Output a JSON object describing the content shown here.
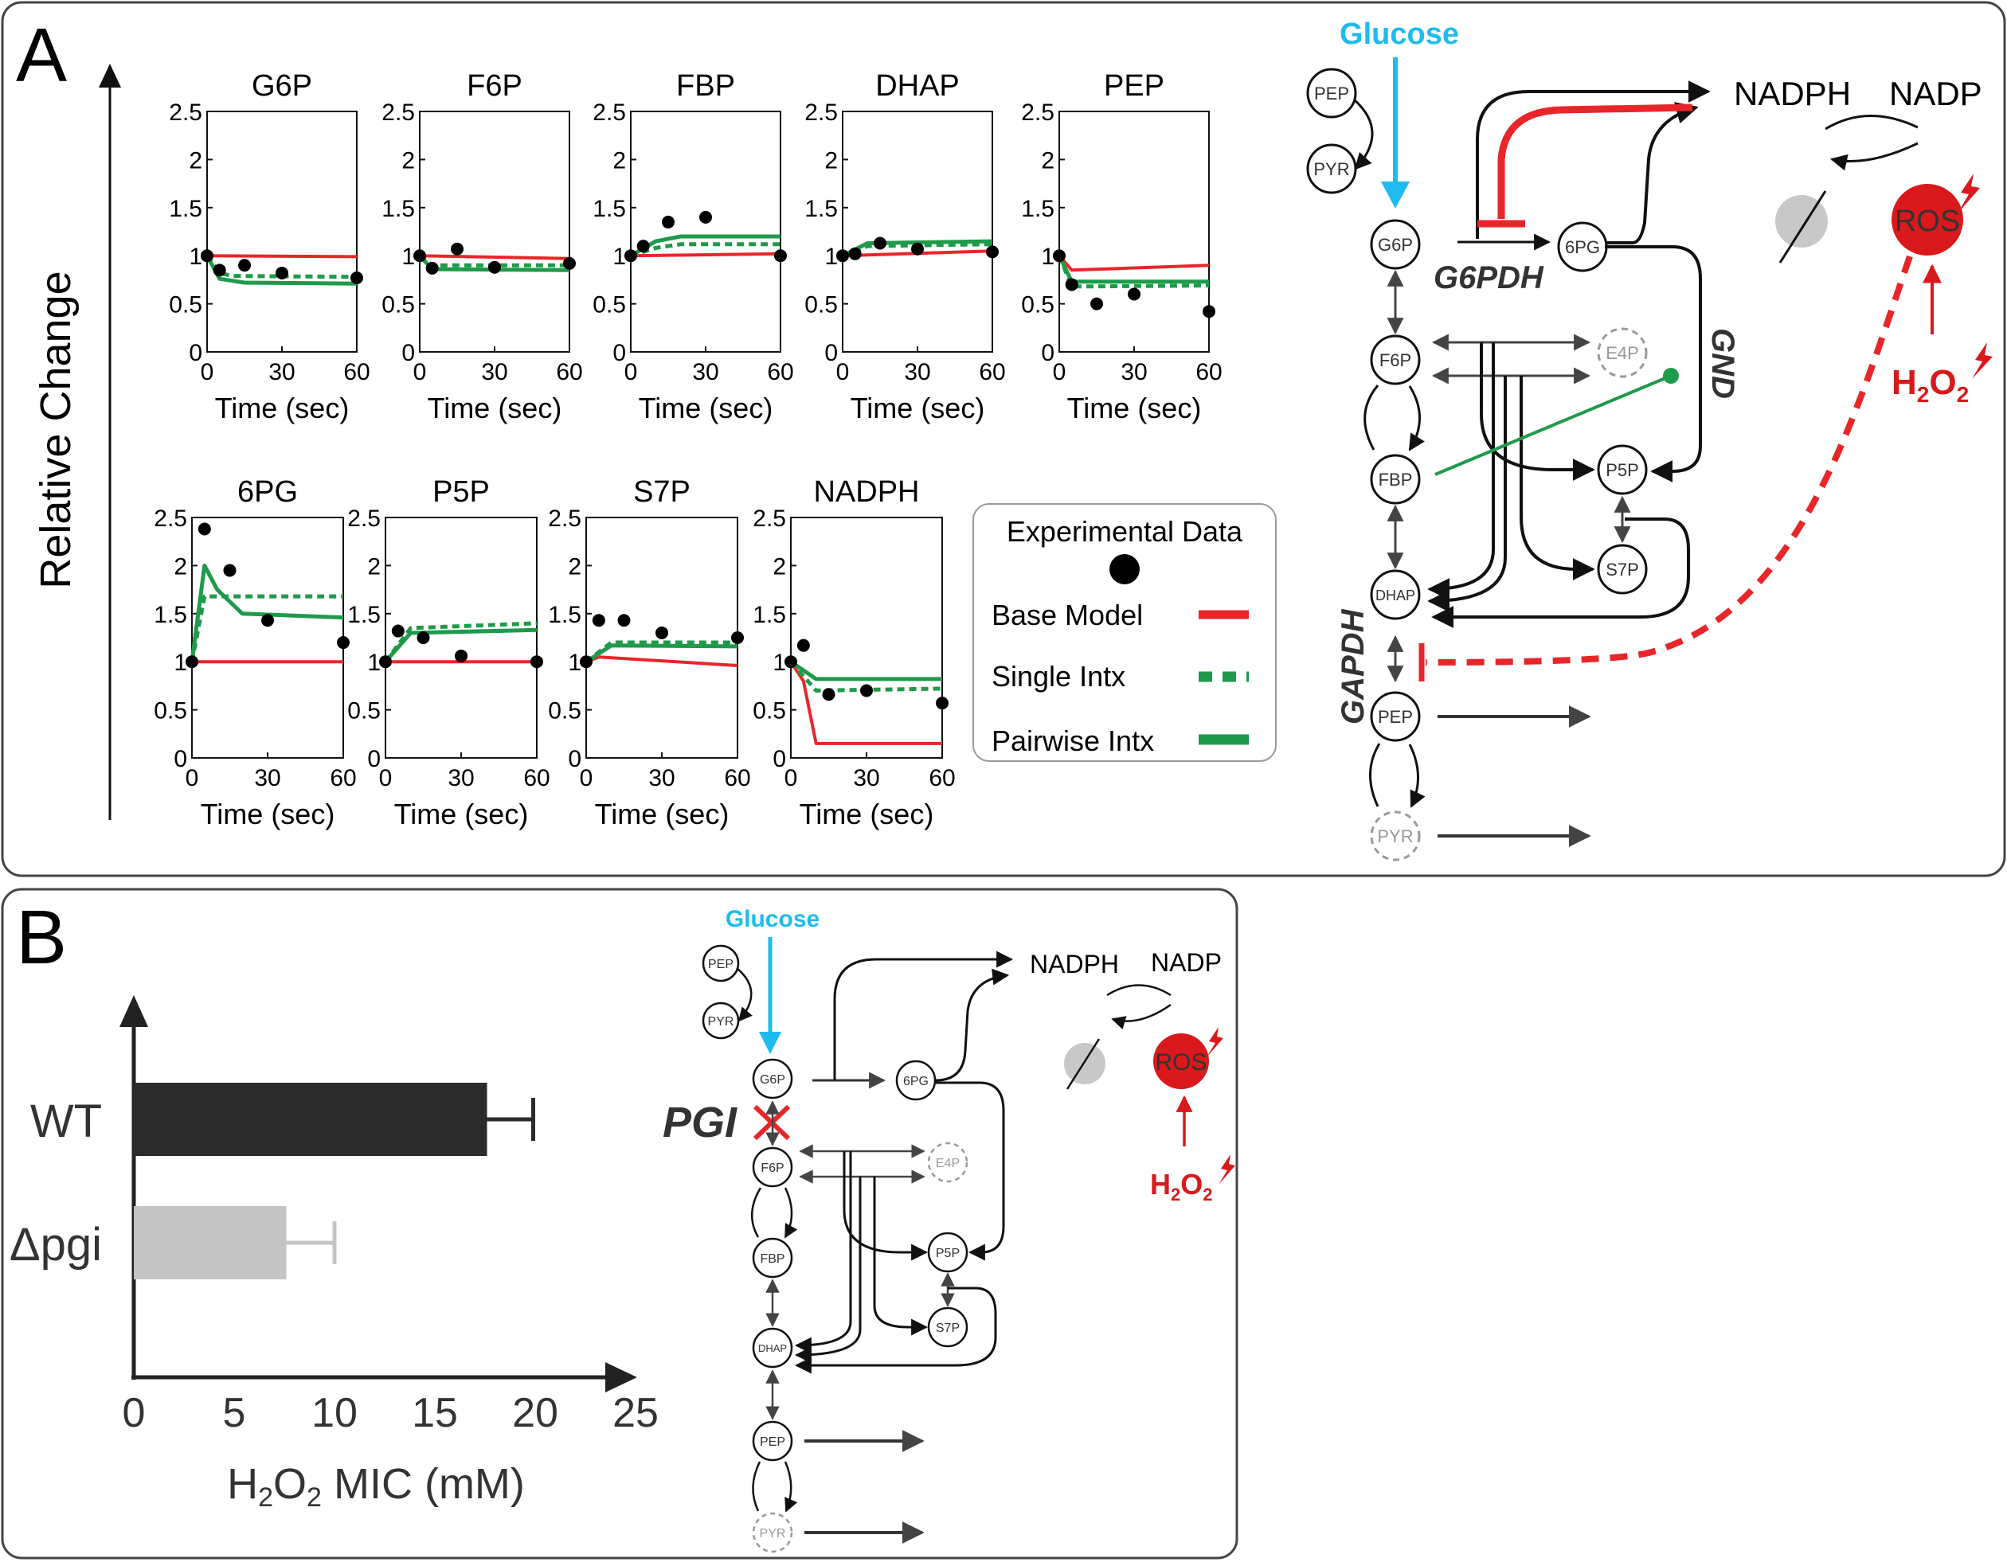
{
  "panels": {
    "a": {
      "letter": "A",
      "ylabel": "Relative Change"
    },
    "b": {
      "letter": "B"
    }
  },
  "colors": {
    "base": "#e8262a",
    "single": "#1f9a4a",
    "pairwise": "#1f9a4a",
    "data": "#000000",
    "glucose": "#1ebbee",
    "ros": "#d9191c",
    "panel_border": "#444444"
  },
  "tick_x": [
    "0",
    "30",
    "60"
  ],
  "tick_y": [
    "0",
    "0.5",
    "1",
    "1.5",
    "2",
    "2.5"
  ],
  "xlabel": "Time (sec)",
  "legend": {
    "title": "Experimental Data",
    "items": [
      {
        "label": "Base Model",
        "style": "solid-red"
      },
      {
        "label": "Single Intx",
        "style": "dotted-green"
      },
      {
        "label": "Pairwise Intx",
        "style": "solid-green"
      }
    ]
  },
  "chart_data": [
    {
      "type": "line",
      "title": "G6P",
      "xlabel": "Time (sec)",
      "xlim": [
        0,
        60
      ],
      "ylim": [
        0,
        2.5
      ],
      "points": [
        [
          0,
          1.0
        ],
        [
          5,
          0.85
        ],
        [
          15,
          0.9
        ],
        [
          30,
          0.82
        ],
        [
          60,
          0.77
        ]
      ],
      "series": [
        {
          "name": "Base Model",
          "x": [
            0,
            60
          ],
          "y": [
            1.0,
            0.99
          ]
        },
        {
          "name": "Single Intx",
          "x": [
            0,
            5,
            10,
            60
          ],
          "y": [
            1.0,
            0.82,
            0.79,
            0.78
          ]
        },
        {
          "name": "Pairwise Intx",
          "x": [
            0,
            5,
            15,
            60
          ],
          "y": [
            1.0,
            0.76,
            0.72,
            0.71
          ]
        }
      ]
    },
    {
      "type": "line",
      "title": "F6P",
      "xlabel": "Time (sec)",
      "xlim": [
        0,
        60
      ],
      "ylim": [
        0,
        2.5
      ],
      "points": [
        [
          0,
          1.0
        ],
        [
          5,
          0.87
        ],
        [
          15,
          1.07
        ],
        [
          30,
          0.88
        ],
        [
          60,
          0.92
        ]
      ],
      "series": [
        {
          "name": "Base Model",
          "x": [
            0,
            60
          ],
          "y": [
            1.0,
            0.97
          ]
        },
        {
          "name": "Single Intx",
          "x": [
            0,
            5,
            60
          ],
          "y": [
            1.0,
            0.9,
            0.9
          ]
        },
        {
          "name": "Pairwise Intx",
          "x": [
            0,
            5,
            60
          ],
          "y": [
            1.0,
            0.86,
            0.85
          ]
        }
      ]
    },
    {
      "type": "line",
      "title": "FBP",
      "xlabel": "Time (sec)",
      "xlim": [
        0,
        60
      ],
      "ylim": [
        0,
        2.5
      ],
      "points": [
        [
          0,
          1.0
        ],
        [
          5,
          1.1
        ],
        [
          15,
          1.35
        ],
        [
          30,
          1.4
        ],
        [
          60,
          1.0
        ]
      ],
      "series": [
        {
          "name": "Base Model",
          "x": [
            0,
            60
          ],
          "y": [
            1.0,
            1.02
          ]
        },
        {
          "name": "Single Intx",
          "x": [
            0,
            10,
            20,
            60
          ],
          "y": [
            1.0,
            1.08,
            1.12,
            1.12
          ]
        },
        {
          "name": "Pairwise Intx",
          "x": [
            0,
            10,
            20,
            60
          ],
          "y": [
            1.0,
            1.15,
            1.2,
            1.2
          ]
        }
      ]
    },
    {
      "type": "line",
      "title": "DHAP",
      "xlabel": "Time (sec)",
      "xlim": [
        0,
        60
      ],
      "ylim": [
        0,
        2.5
      ],
      "points": [
        [
          0,
          1.0
        ],
        [
          5,
          1.02
        ],
        [
          15,
          1.13
        ],
        [
          30,
          1.07
        ],
        [
          60,
          1.04
        ]
      ],
      "series": [
        {
          "name": "Base Model",
          "x": [
            0,
            60
          ],
          "y": [
            1.0,
            1.05
          ]
        },
        {
          "name": "Single Intx",
          "x": [
            0,
            10,
            60
          ],
          "y": [
            1.0,
            1.1,
            1.12
          ]
        },
        {
          "name": "Pairwise Intx",
          "x": [
            0,
            10,
            60
          ],
          "y": [
            1.0,
            1.13,
            1.15
          ]
        }
      ]
    },
    {
      "type": "line",
      "title": "PEP",
      "xlabel": "Time (sec)",
      "xlim": [
        0,
        60
      ],
      "ylim": [
        0,
        2.5
      ],
      "points": [
        [
          0,
          1.0
        ],
        [
          5,
          0.7
        ],
        [
          15,
          0.5
        ],
        [
          30,
          0.6
        ],
        [
          60,
          0.42
        ]
      ],
      "series": [
        {
          "name": "Base Model",
          "x": [
            0,
            5,
            60
          ],
          "y": [
            1.0,
            0.85,
            0.9
          ]
        },
        {
          "name": "Single Intx",
          "x": [
            0,
            5,
            60
          ],
          "y": [
            1.0,
            0.68,
            0.69
          ]
        },
        {
          "name": "Pairwise Intx",
          "x": [
            0,
            5,
            60
          ],
          "y": [
            1.0,
            0.73,
            0.73
          ]
        }
      ]
    },
    {
      "type": "line",
      "title": "6PG",
      "xlabel": "Time (sec)",
      "xlim": [
        0,
        60
      ],
      "ylim": [
        0,
        2.5
      ],
      "points": [
        [
          0,
          1.0
        ],
        [
          5,
          2.38
        ],
        [
          15,
          1.95
        ],
        [
          30,
          1.43
        ],
        [
          60,
          1.2
        ]
      ],
      "series": [
        {
          "name": "Base Model",
          "x": [
            0,
            60
          ],
          "y": [
            1.0,
            1.0
          ]
        },
        {
          "name": "Single Intx",
          "x": [
            0,
            5,
            60
          ],
          "y": [
            1.0,
            1.68,
            1.68
          ]
        },
        {
          "name": "Pairwise Intx",
          "x": [
            0,
            5,
            10,
            20,
            60
          ],
          "y": [
            1.0,
            2.0,
            1.75,
            1.5,
            1.46
          ]
        }
      ]
    },
    {
      "type": "line",
      "title": "P5P",
      "xlabel": "Time (sec)",
      "xlim": [
        0,
        60
      ],
      "ylim": [
        0,
        2.5
      ],
      "points": [
        [
          0,
          1.0
        ],
        [
          5,
          1.32
        ],
        [
          15,
          1.25
        ],
        [
          30,
          1.06
        ],
        [
          60,
          1.0
        ]
      ],
      "series": [
        {
          "name": "Base Model",
          "x": [
            0,
            60
          ],
          "y": [
            1.0,
            1.0
          ]
        },
        {
          "name": "Single Intx",
          "x": [
            0,
            10,
            60
          ],
          "y": [
            1.0,
            1.35,
            1.4
          ]
        },
        {
          "name": "Pairwise Intx",
          "x": [
            0,
            10,
            60
          ],
          "y": [
            1.0,
            1.3,
            1.33
          ]
        }
      ]
    },
    {
      "type": "line",
      "title": "S7P",
      "xlabel": "Time (sec)",
      "xlim": [
        0,
        60
      ],
      "ylim": [
        0,
        2.5
      ],
      "points": [
        [
          0,
          1.0
        ],
        [
          5,
          1.43
        ],
        [
          15,
          1.43
        ],
        [
          30,
          1.3
        ],
        [
          60,
          1.25
        ]
      ],
      "series": [
        {
          "name": "Base Model",
          "x": [
            0,
            5,
            60
          ],
          "y": [
            1.0,
            1.05,
            0.96
          ]
        },
        {
          "name": "Single Intx",
          "x": [
            0,
            10,
            60
          ],
          "y": [
            1.0,
            1.2,
            1.2
          ]
        },
        {
          "name": "Pairwise Intx",
          "x": [
            0,
            10,
            60
          ],
          "y": [
            1.0,
            1.17,
            1.16
          ]
        }
      ]
    },
    {
      "type": "line",
      "title": "NADPH",
      "xlabel": "Time (sec)",
      "xlim": [
        0,
        60
      ],
      "ylim": [
        0,
        2.5
      ],
      "points": [
        [
          0,
          1.0
        ],
        [
          5,
          1.17
        ],
        [
          15,
          0.66
        ],
        [
          30,
          0.7
        ],
        [
          60,
          0.57
        ]
      ],
      "series": [
        {
          "name": "Base Model",
          "x": [
            0,
            5,
            10,
            60
          ],
          "y": [
            1.0,
            0.8,
            0.15,
            0.15
          ]
        },
        {
          "name": "Single Intx",
          "x": [
            0,
            10,
            60
          ],
          "y": [
            1.0,
            0.7,
            0.72
          ]
        },
        {
          "name": "Pairwise Intx",
          "x": [
            0,
            10,
            60
          ],
          "y": [
            1.0,
            0.82,
            0.82
          ]
        }
      ]
    },
    {
      "type": "bar",
      "orientation": "horizontal",
      "categories": [
        "WT",
        "Δpgi"
      ],
      "values": [
        17.6,
        7.6
      ],
      "errors": [
        2.3,
        2.4
      ],
      "xlabel_parts": [
        "H",
        "2",
        "O",
        "2",
        " MIC (mM)"
      ],
      "xlim": [
        0,
        25
      ],
      "ticks": [
        "0",
        "5",
        "10",
        "15",
        "20",
        "25"
      ],
      "bar_colors": [
        "#2b2b2b",
        "#c4c4c4"
      ]
    }
  ],
  "network_a": {
    "glucose": "Glucose",
    "nadph": "NADPH",
    "nadp": "NADP",
    "ros": "ROS",
    "h2o2": {
      "h": "H",
      "sub1": "2",
      "o": "O",
      "sub2": "2"
    },
    "enzymes": {
      "g6pdh": "G6PDH",
      "gnd": "GND",
      "gapdh": "GAPDH"
    },
    "nodes": {
      "pep_top": "PEP",
      "pyr_top": "PYR",
      "g6p": "G6P",
      "f6p": "F6P",
      "fbp": "FBP",
      "dhap": "DHAP",
      "pep": "PEP",
      "pyr": "PYR",
      "pg6": "6PG",
      "e4p": "E4P",
      "p5p": "P5P",
      "s7p": "S7P"
    }
  },
  "network_b": {
    "glucose": "Glucose",
    "nadph": "NADPH",
    "nadp": "NADP",
    "ros": "ROS",
    "pgi": "PGI",
    "h2o2": {
      "h": "H",
      "sub1": "2",
      "o": "O",
      "sub2": "2"
    },
    "nodes": {
      "pep_top": "PEP",
      "pyr_top": "PYR",
      "g6p": "G6P",
      "f6p": "F6P",
      "fbp": "FBP",
      "dhap": "DHAP",
      "pep": "PEP",
      "pyr": "PYR",
      "pg6": "6PG",
      "e4p": "E4P",
      "p5p": "P5P",
      "s7p": "S7P"
    }
  }
}
